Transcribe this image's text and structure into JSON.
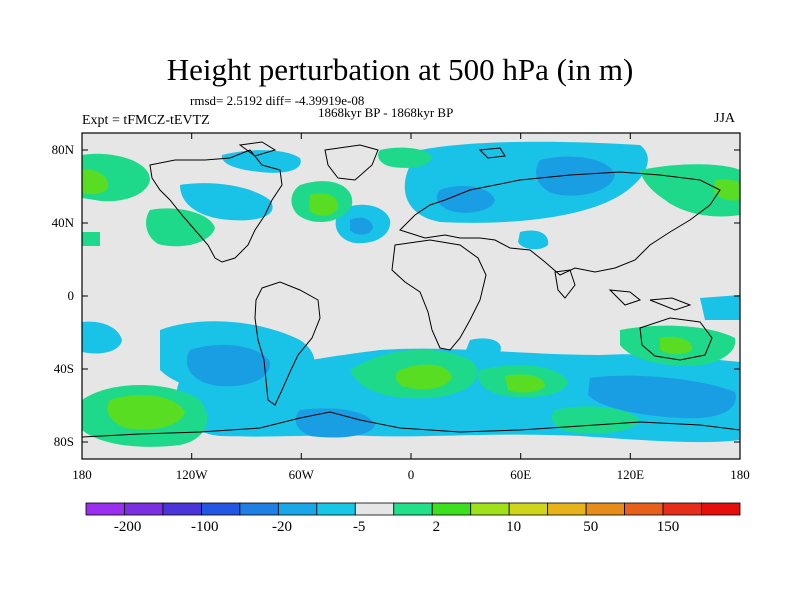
{
  "title": "Height perturbation at 500 hPa (in m)",
  "stats_line": "rmsd= 2.5192  diff= -4.39919e-08",
  "period": "1868kyr BP - 1868kyr BP",
  "experiment": "Expt = tFMCZ-tEVTZ",
  "season": "JJA",
  "y_ticks": [
    "80N",
    "40N",
    "0",
    "40S",
    "80S"
  ],
  "x_ticks": [
    "180",
    "120W",
    "60W",
    "0",
    "60E",
    "120E",
    "180"
  ],
  "colorbar": {
    "labels": [
      "-200",
      "-100",
      "-20",
      "-5",
      "2",
      "10",
      "50",
      "150"
    ],
    "colors": [
      "#9b2ff0",
      "#7a2fe0",
      "#4a35d8",
      "#2357e3",
      "#1f7fe3",
      "#19a7e8",
      "#18c7e6",
      "#e6e6e6",
      "#20e08a",
      "#3ce01f",
      "#9fe21a",
      "#d0d41a",
      "#e6b41a",
      "#e68c1a",
      "#e6601a",
      "#e62d1a",
      "#e60d0d"
    ]
  },
  "palette": {
    "neutral": "#e6e6e6",
    "light_blue": "#19c3e8",
    "mid_blue": "#1a9ee3",
    "light_green": "#1fd98a",
    "mid_green": "#59dd22"
  },
  "regions": {
    "positive_light": "2 to 10",
    "positive_mid": "10 to 20",
    "negative_light": "-5 to -2",
    "negative_mid": "-20 to -5"
  }
}
